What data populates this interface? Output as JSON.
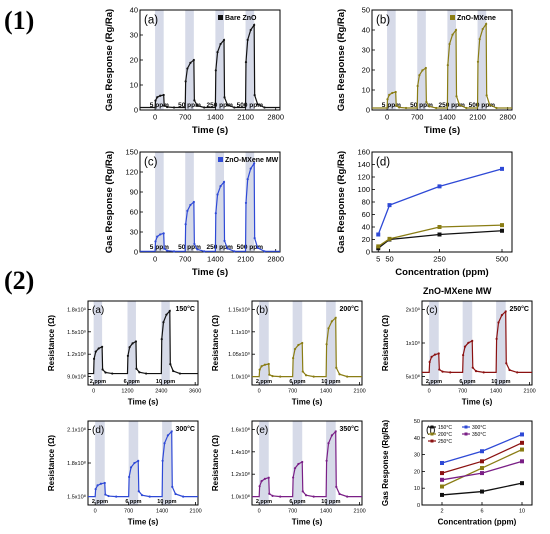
{
  "section_labels": [
    "(1)",
    "(2)"
  ],
  "group_title": "ZnO-MXene MW",
  "colors": {
    "black": "#111111",
    "olive": "#8a7d14",
    "blue": "#2e49d6",
    "maroon": "#8b1111",
    "purple": "#7a1f86",
    "band": "#d6dae8"
  },
  "chart_data": [
    {
      "id": "1a",
      "type": "line",
      "panel_label": "(a)",
      "legend": "Bare ZnO",
      "series_color": "#111111",
      "xlabel": "Time (s)",
      "ylabel": "Gas Response (Rg/Ra)",
      "xticks": [
        "0",
        "700",
        "1400",
        "2100",
        "2800"
      ],
      "yticks": [
        "0",
        "10",
        "20",
        "30",
        "40"
      ],
      "xlim": [
        -350,
        2900
      ],
      "ylim": [
        0,
        40
      ],
      "pulses": [
        {
          "start": 0,
          "end": 200,
          "peak": 6,
          "label": "5 ppm"
        },
        {
          "start": 700,
          "end": 900,
          "peak": 20,
          "label": "50 ppm"
        },
        {
          "start": 1400,
          "end": 1600,
          "peak": 28,
          "label": "250 ppm"
        },
        {
          "start": 2100,
          "end": 2300,
          "peak": 34,
          "label": "500 ppm"
        }
      ]
    },
    {
      "id": "1b",
      "type": "line",
      "panel_label": "(b)",
      "legend": "ZnO-MXene",
      "series_color": "#8a7d14",
      "xlabel": "Time (s)",
      "ylabel": "Gas Response (Rg/Ra)",
      "xticks": [
        "0",
        "700",
        "1400",
        "2100",
        "2800"
      ],
      "yticks": [
        "0",
        "10",
        "20",
        "30",
        "40",
        "50"
      ],
      "xlim": [
        -350,
        2900
      ],
      "ylim": [
        0,
        50
      ],
      "pulses": [
        {
          "start": 0,
          "end": 200,
          "peak": 9,
          "label": "5 ppm"
        },
        {
          "start": 700,
          "end": 900,
          "peak": 21,
          "label": "50 ppm"
        },
        {
          "start": 1400,
          "end": 1600,
          "peak": 40,
          "label": "250 ppm"
        },
        {
          "start": 2100,
          "end": 2300,
          "peak": 43,
          "label": "500 ppm"
        }
      ]
    },
    {
      "id": "1c",
      "type": "line",
      "panel_label": "(c)",
      "legend": "ZnO-MXene MW",
      "series_color": "#2e49d6",
      "xlabel": "Time (s)",
      "ylabel": "Gas Response (Rg/Ra)",
      "xticks": [
        "0",
        "700",
        "1400",
        "2100",
        "2800"
      ],
      "yticks": [
        "0",
        "30",
        "60",
        "90",
        "120",
        "150"
      ],
      "xlim": [
        -350,
        2900
      ],
      "ylim": [
        0,
        150
      ],
      "pulses": [
        {
          "start": 0,
          "end": 200,
          "peak": 28,
          "label": "5 ppm"
        },
        {
          "start": 700,
          "end": 900,
          "peak": 75,
          "label": "50 ppm"
        },
        {
          "start": 1400,
          "end": 1600,
          "peak": 105,
          "label": "250 ppm"
        },
        {
          "start": 2100,
          "end": 2300,
          "peak": 133,
          "label": "500 ppm"
        }
      ]
    },
    {
      "id": "1d",
      "type": "line",
      "panel_label": "(d)",
      "xlabel": "Concentration (ppm)",
      "ylabel": "Gas Response (Rg/Ra)",
      "xticks": [
        "5",
        "50",
        "250",
        "500"
      ],
      "yticks": [
        "0",
        "20",
        "40",
        "60",
        "80",
        "100",
        "120",
        "140",
        "160"
      ],
      "xlim": [
        -20,
        540
      ],
      "ylim": [
        0,
        160
      ],
      "x": [
        5,
        50,
        250,
        500
      ],
      "series": [
        {
          "values": [
            6,
            20,
            28,
            34
          ],
          "color": "#111111"
        },
        {
          "values": [
            9,
            21,
            40,
            43
          ],
          "color": "#8a7d14"
        },
        {
          "values": [
            28,
            75,
            105,
            133
          ],
          "color": "#2e49d6"
        }
      ]
    },
    {
      "id": "2a",
      "type": "line",
      "panel_label": "(a)",
      "legend": "150°C",
      "series_color": "#111111",
      "xlabel": "Time (s)",
      "ylabel": "Resistance (Ω)",
      "xticks": [
        "0",
        "1200",
        "2400",
        "3600"
      ],
      "yticks": [
        "9.0x10⁸",
        "1.2x10⁹",
        "1.5x10⁹",
        "1.8x10⁹"
      ],
      "xlim": [
        -200,
        3700
      ],
      "ylim": [
        0.85,
        1.95
      ],
      "baseline": 1.0,
      "pulses": [
        {
          "start": 0,
          "end": 300,
          "peak": 1.35,
          "label": "2 ppm"
        },
        {
          "start": 1200,
          "end": 1500,
          "peak": 1.42,
          "label": "6 ppm"
        },
        {
          "start": 2400,
          "end": 2700,
          "peak": 1.82,
          "label": "10 ppm"
        }
      ]
    },
    {
      "id": "2b",
      "type": "line",
      "panel_label": "(b)",
      "legend": "200°C",
      "series_color": "#8a7d14",
      "xlabel": "Time (s)",
      "ylabel": "Resistance (Ω)",
      "xticks": [
        "0",
        "700",
        "1400",
        "2100"
      ],
      "yticks": [
        "1.0x10⁹",
        "1.05x10⁹",
        "1.1x10⁹",
        "1.15x10⁹"
      ],
      "xlim": [
        -150,
        2150
      ],
      "ylim": [
        0.98,
        1.18
      ],
      "baseline": 1.0,
      "pulses": [
        {
          "start": 0,
          "end": 200,
          "peak": 1.03,
          "label": "2 ppm"
        },
        {
          "start": 700,
          "end": 900,
          "peak": 1.08,
          "label": "6 ppm"
        },
        {
          "start": 1400,
          "end": 1600,
          "peak": 1.14,
          "label": "10 ppm"
        }
      ]
    },
    {
      "id": "2c",
      "type": "line",
      "panel_label": "(c)",
      "legend": "250°C",
      "series_color": "#8b1111",
      "xlabel": "Time (s)",
      "ylabel": "Resistance (Ω)",
      "xticks": [
        "0",
        "700",
        "1400",
        "2100"
      ],
      "yticks": [
        "5x10⁸",
        "1x10⁹",
        "2x10⁹"
      ],
      "xlim": [
        -150,
        2150
      ],
      "ylim": [
        0.3,
        2.3
      ],
      "baseline": 0.6,
      "pulses": [
        {
          "start": 0,
          "end": 200,
          "peak": 1.05,
          "label": "2 ppm"
        },
        {
          "start": 700,
          "end": 900,
          "peak": 1.35,
          "label": "6 ppm"
        },
        {
          "start": 1400,
          "end": 1600,
          "peak": 2.05,
          "label": "10 ppm"
        }
      ]
    },
    {
      "id": "2d",
      "type": "line",
      "panel_label": "(d)",
      "legend": "300°C",
      "series_color": "#2e49d6",
      "xlabel": "Time (s)",
      "ylabel": "Resistance (Ω)",
      "xticks": [
        "0",
        "700",
        "1400",
        "2100"
      ],
      "yticks": [
        "1.5x10⁸",
        "1.8x10⁸",
        "2.1x10⁸"
      ],
      "xlim": [
        -150,
        2150
      ],
      "ylim": [
        1.42,
        2.22
      ],
      "baseline": 1.5,
      "pulses": [
        {
          "start": 0,
          "end": 200,
          "peak": 1.63,
          "label": "2 ppm"
        },
        {
          "start": 700,
          "end": 900,
          "peak": 1.84,
          "label": "6 ppm"
        },
        {
          "start": 1400,
          "end": 1600,
          "peak": 2.12,
          "label": "10 ppm"
        }
      ]
    },
    {
      "id": "2e",
      "type": "line",
      "panel_label": "(e)",
      "legend": "350°C",
      "series_color": "#7a1f86",
      "xlabel": "Time (s)",
      "ylabel": "Resistance (Ω)",
      "xticks": [
        "0",
        "700",
        "1400",
        "2100"
      ],
      "yticks": [
        "1.0x10⁸",
        "1.2x10⁸",
        "1.4x10⁸",
        "1.6x10⁸"
      ],
      "xlim": [
        -150,
        2150
      ],
      "ylim": [
        0.92,
        1.72
      ],
      "baseline": 1.0,
      "pulses": [
        {
          "start": 0,
          "end": 200,
          "peak": 1.18,
          "label": "2 ppm"
        },
        {
          "start": 700,
          "end": 900,
          "peak": 1.33,
          "label": "6 ppm"
        },
        {
          "start": 1400,
          "end": 1600,
          "peak": 1.62,
          "label": "10 ppm"
        }
      ]
    },
    {
      "id": "2f",
      "type": "line",
      "panel_label": "(f)",
      "xlabel": "Concentration (ppm)",
      "ylabel": "Gas Response (Rg/Ra)",
      "xticks": [
        "2",
        "6",
        "10"
      ],
      "yticks": [
        "0",
        "10",
        "20",
        "30",
        "40",
        "50"
      ],
      "xlim": [
        0,
        11
      ],
      "ylim": [
        0,
        50
      ],
      "x": [
        2,
        6,
        10
      ],
      "series": [
        {
          "name": "150°C",
          "values": [
            6,
            8,
            13
          ],
          "color": "#111111"
        },
        {
          "name": "200°C",
          "values": [
            11,
            22,
            33
          ],
          "color": "#8a7d14"
        },
        {
          "name": "250°C",
          "values": [
            19,
            26,
            37
          ],
          "color": "#8b1111"
        },
        {
          "name": "300°C",
          "values": [
            25,
            32,
            42
          ],
          "color": "#2e49d6"
        },
        {
          "name": "350°C",
          "values": [
            15,
            19,
            26
          ],
          "color": "#7a1f86"
        }
      ]
    }
  ]
}
